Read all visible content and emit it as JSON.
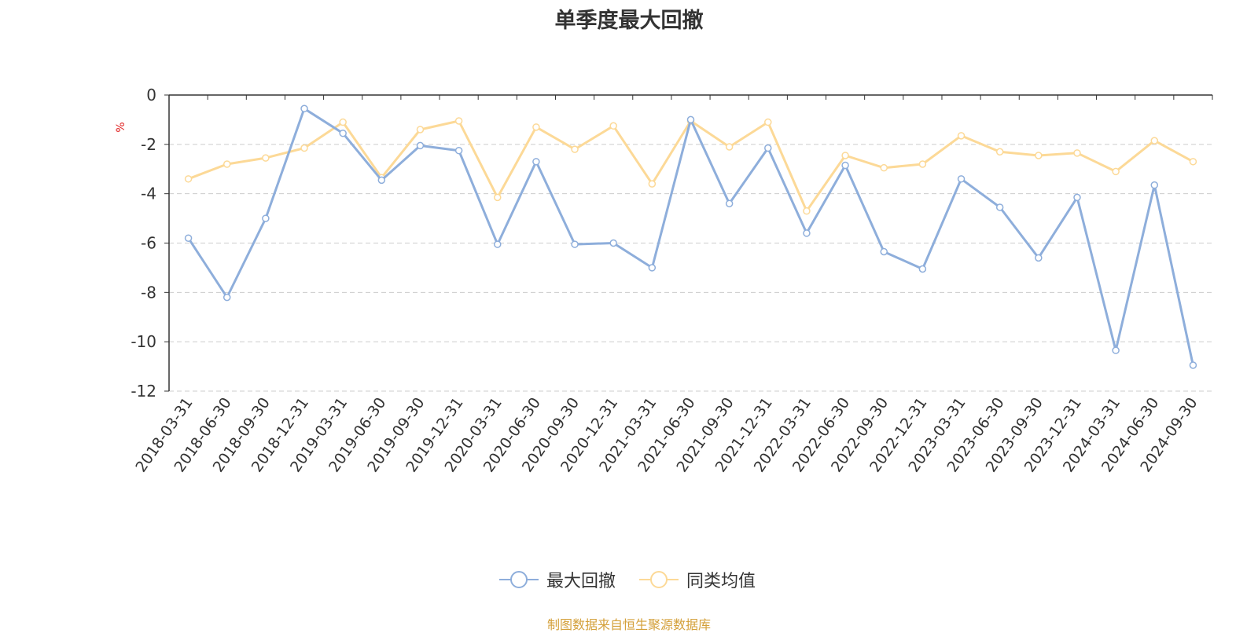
{
  "chart_data": {
    "type": "line",
    "title": "单季度最大回撤",
    "ylabel": "%",
    "xlabel": "",
    "ylim": [
      -12,
      0
    ],
    "yticks": [
      0,
      -2,
      -4,
      -6,
      -8,
      -10,
      -12
    ],
    "grid": true,
    "legend_position": "bottom-center",
    "categories": [
      "2018-03-31",
      "2018-06-30",
      "2018-09-30",
      "2018-12-31",
      "2019-03-31",
      "2019-06-30",
      "2019-09-30",
      "2019-12-31",
      "2020-03-31",
      "2020-06-30",
      "2020-09-30",
      "2020-12-31",
      "2021-03-31",
      "2021-06-30",
      "2021-09-30",
      "2021-12-31",
      "2022-03-31",
      "2022-06-30",
      "2022-09-30",
      "2022-12-31",
      "2023-03-31",
      "2023-06-30",
      "2023-09-30",
      "2023-12-31",
      "2024-03-31",
      "2024-06-30",
      "2024-09-30"
    ],
    "series": [
      {
        "name": "最大回撤",
        "color": "#8eaedb",
        "values": [
          -5.8,
          -8.2,
          -5.0,
          -0.55,
          -1.55,
          -3.45,
          -2.05,
          -2.25,
          -6.05,
          -2.7,
          -6.05,
          -6.0,
          -7.0,
          -1.0,
          -4.4,
          -2.15,
          -5.6,
          -2.85,
          -6.35,
          -7.05,
          -3.4,
          -4.55,
          -6.6,
          -4.15,
          -10.35,
          -3.65,
          -10.95
        ]
      },
      {
        "name": "同类均值",
        "color": "#fcd997",
        "values": [
          -3.4,
          -2.8,
          -2.55,
          -2.15,
          -1.1,
          -3.35,
          -1.4,
          -1.05,
          -4.15,
          -1.3,
          -2.2,
          -1.25,
          -3.6,
          -1.05,
          -2.1,
          -1.1,
          -4.7,
          -2.45,
          -2.95,
          -2.8,
          -1.65,
          -2.3,
          -2.45,
          -2.35,
          -3.1,
          -1.85,
          -2.7
        ]
      }
    ]
  },
  "source_note": {
    "text": "制图数据来自恒生聚源数据库",
    "color": "#d4a03a"
  },
  "ylabel_color": "#e02020"
}
